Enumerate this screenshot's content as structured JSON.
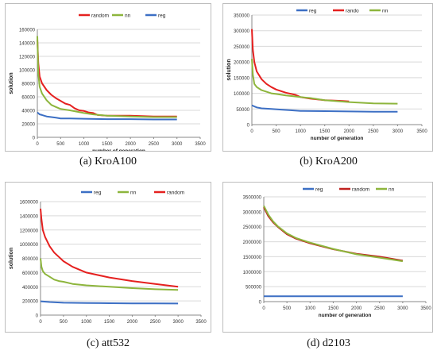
{
  "chart_data": [
    {
      "type": "line",
      "caption": "(a) KroA100",
      "xlabel": "number of generation",
      "ylabel": "solution",
      "xlim": [
        0,
        3500
      ],
      "ylim": [
        0,
        160000
      ],
      "xticks": [
        0,
        500,
        1000,
        1500,
        2000,
        2500,
        3000,
        3500
      ],
      "yticks": [
        0,
        20000,
        40000,
        60000,
        80000,
        100000,
        120000,
        140000,
        160000
      ],
      "grid": true,
      "legend": "top-right",
      "series": [
        {
          "name": "random",
          "color": "#e5201f",
          "x": [
            0,
            20,
            50,
            100,
            200,
            300,
            400,
            500,
            600,
            700,
            800,
            900,
            1000,
            1100,
            1200,
            1300,
            1500,
            2000,
            2500,
            3000
          ],
          "y": [
            145000,
            110000,
            90000,
            80000,
            70000,
            63000,
            58000,
            54000,
            50000,
            48000,
            43000,
            40000,
            39000,
            37000,
            36000,
            33000,
            32000,
            32000,
            31000,
            31000
          ]
        },
        {
          "name": "nn",
          "color": "#8db53c",
          "x": [
            0,
            20,
            50,
            100,
            200,
            300,
            400,
            500,
            700,
            1000,
            1200,
            1500,
            2000,
            2500,
            3000
          ],
          "y": [
            150000,
            95000,
            75000,
            65000,
            55000,
            48000,
            45000,
            42000,
            40000,
            36000,
            34000,
            32000,
            31000,
            30000,
            30000
          ]
        },
        {
          "name": "reg",
          "color": "#3c6fc4",
          "x": [
            0,
            50,
            100,
            200,
            300,
            400,
            500,
            700,
            1000,
            1500,
            2000,
            2500,
            3000
          ],
          "y": [
            37000,
            34000,
            33000,
            31000,
            30000,
            29000,
            28000,
            28000,
            27500,
            27000,
            27000,
            26500,
            26500
          ]
        }
      ]
    },
    {
      "type": "line",
      "caption": "(b) KroA200",
      "xlabel": "number of generation",
      "ylabel": "solution",
      "xlim": [
        0,
        3500
      ],
      "ylim": [
        0,
        350000
      ],
      "xticks": [
        0,
        500,
        1000,
        1500,
        2000,
        2500,
        3000,
        3500
      ],
      "yticks": [
        0,
        50000,
        100000,
        150000,
        200000,
        250000,
        300000,
        350000
      ],
      "grid": true,
      "legend": "top-right",
      "series": [
        {
          "name": "reg",
          "color": "#3c6fc4",
          "x": [
            0,
            50,
            100,
            200,
            400,
            600,
            800,
            1000,
            1500,
            2000,
            2500,
            3000
          ],
          "y": [
            62000,
            58000,
            55000,
            52000,
            50000,
            48000,
            46000,
            44000,
            43000,
            42000,
            41000,
            41000
          ]
        },
        {
          "name": "rando",
          "color": "#e5201f",
          "x": [
            0,
            20,
            50,
            100,
            200,
            300,
            400,
            500,
            700,
            900,
            1000,
            1200,
            1500,
            1800,
            2000
          ],
          "y": [
            305000,
            240000,
            200000,
            170000,
            145000,
            130000,
            120000,
            112000,
            102000,
            95000,
            88000,
            83000,
            78000,
            76000,
            74000
          ]
        },
        {
          "name": "nn",
          "color": "#8db53c",
          "x": [
            0,
            20,
            50,
            100,
            200,
            300,
            400,
            500,
            700,
            1000,
            1200,
            1500,
            2000,
            2500,
            3000
          ],
          "y": [
            210000,
            160000,
            130000,
            120000,
            110000,
            105000,
            100000,
            98000,
            93000,
            88000,
            85000,
            78000,
            72000,
            68000,
            67000
          ]
        }
      ]
    },
    {
      "type": "line",
      "caption": "(c) att532",
      "xlabel": "",
      "ylabel": "solution",
      "xlim": [
        0,
        3500
      ],
      "ylim": [
        0,
        1600000
      ],
      "xticks": [
        0,
        500,
        1000,
        1500,
        2000,
        2500,
        3000,
        3500
      ],
      "yticks": [
        0,
        200000,
        400000,
        600000,
        800000,
        1000000,
        1200000,
        1400000,
        1600000
      ],
      "grid": true,
      "legend": "top-right",
      "series": [
        {
          "name": "reg",
          "color": "#3c6fc4",
          "x": [
            0,
            200,
            500,
            1000,
            1500,
            2000,
            2500,
            3000
          ],
          "y": [
            195000,
            185000,
            175000,
            170000,
            168000,
            166000,
            164000,
            163000
          ]
        },
        {
          "name": "nn",
          "color": "#8db53c",
          "x": [
            0,
            20,
            50,
            100,
            200,
            300,
            400,
            500,
            700,
            1000,
            1500,
            2000,
            2500,
            3000
          ],
          "y": [
            800000,
            680000,
            620000,
            580000,
            540000,
            500000,
            480000,
            470000,
            440000,
            420000,
            400000,
            380000,
            365000,
            355000
          ]
        },
        {
          "name": "random",
          "color": "#e5201f",
          "x": [
            0,
            20,
            50,
            100,
            200,
            300,
            400,
            500,
            700,
            1000,
            1500,
            2000,
            2500,
            3000
          ],
          "y": [
            1500000,
            1350000,
            1200000,
            1100000,
            970000,
            880000,
            820000,
            760000,
            680000,
            600000,
            530000,
            480000,
            440000,
            400000
          ]
        }
      ]
    },
    {
      "type": "line",
      "caption": "(d) d2103",
      "xlabel": "number of generation",
      "ylabel": "",
      "xlim": [
        0,
        3500
      ],
      "ylim": [
        0,
        3500000
      ],
      "xticks": [
        0,
        500,
        1000,
        1500,
        2000,
        2500,
        3000,
        3500
      ],
      "yticks": [
        0,
        500000,
        1000000,
        1500000,
        2000000,
        2500000,
        3000000,
        3500000
      ],
      "grid": true,
      "legend": "top-right",
      "series": [
        {
          "name": "reg",
          "color": "#3c6fc4",
          "x": [
            0,
            500,
            1000,
            1500,
            2000,
            2500,
            3000
          ],
          "y": [
            180000,
            180000,
            180000,
            180000,
            180000,
            180000,
            180000
          ]
        },
        {
          "name": "random",
          "color": "#c0201e",
          "x": [
            0,
            100,
            200,
            300,
            500,
            700,
            1000,
            1500,
            2000,
            2500,
            3000
          ],
          "y": [
            3150000,
            2850000,
            2650000,
            2500000,
            2250000,
            2100000,
            1950000,
            1750000,
            1600000,
            1500000,
            1370000
          ]
        },
        {
          "name": "nn",
          "color": "#8db53c",
          "x": [
            0,
            100,
            200,
            300,
            500,
            700,
            1000,
            1500,
            2000,
            2500,
            3000
          ],
          "y": [
            3200000,
            2900000,
            2680000,
            2520000,
            2280000,
            2120000,
            1970000,
            1760000,
            1580000,
            1470000,
            1350000
          ]
        }
      ]
    }
  ]
}
